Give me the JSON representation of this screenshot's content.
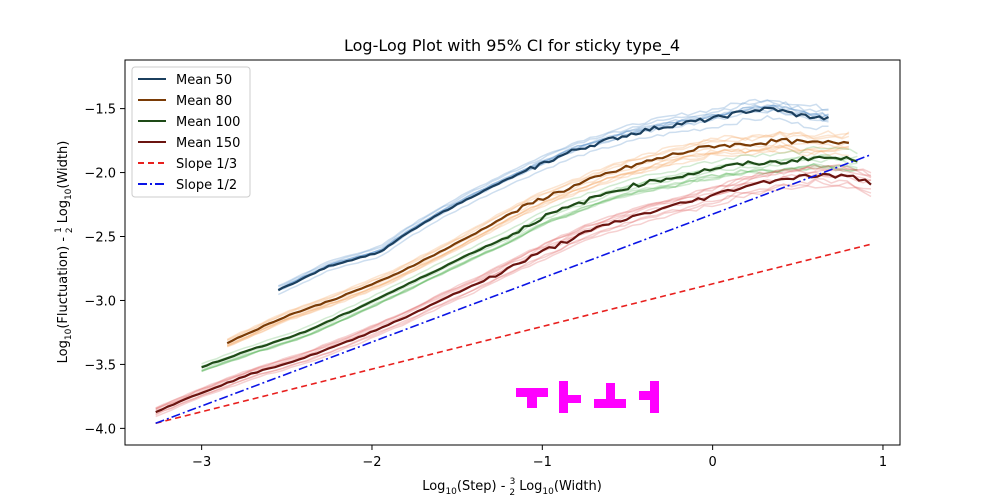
{
  "chart_data": {
    "type": "line",
    "title": "Log-Log Plot with 95% CI for sticky type_4",
    "xlabel": {
      "pre": "Log",
      "sub1": "10",
      "mid": "(Step) - ",
      "frac_num": "3",
      "frac_den": "2",
      "post": " Log",
      "sub2": "10",
      "end": "(Width)"
    },
    "ylabel": {
      "pre": "Log",
      "sub1": "10",
      "mid": "(Fluctuation) - ",
      "frac_num": "1",
      "frac_den": "2",
      "post": " Log",
      "sub2": "10",
      "end": "(Width)"
    },
    "xlim": [
      -3.45,
      1.1
    ],
    "ylim": [
      -4.13,
      -1.12
    ],
    "xticks": [
      -3,
      -2,
      -1,
      0,
      1
    ],
    "xtick_labels": [
      "−3",
      "−2",
      "−1",
      "0",
      "1"
    ],
    "yticks": [
      -4.0,
      -3.5,
      -3.0,
      -2.5,
      -2.0,
      -1.5
    ],
    "ytick_labels": [
      "−4.0",
      "−3.5",
      "−3.0",
      "−2.5",
      "−2.0",
      "−1.5"
    ],
    "grid": false,
    "legend_position": "top-left",
    "series": [
      {
        "name": "Mean 50",
        "color": "#1b3f5e",
        "band_color": "#4a8ac4",
        "x": [
          -2.55,
          -2.25,
          -1.95,
          -1.8,
          -1.6,
          -1.4,
          -1.2,
          -1.0,
          -0.8,
          -0.6,
          -0.4,
          -0.2,
          0.0,
          0.2,
          0.35,
          0.5,
          0.68
        ],
        "y": [
          -2.92,
          -2.73,
          -2.62,
          -2.48,
          -2.32,
          -2.18,
          -2.05,
          -1.93,
          -1.82,
          -1.74,
          -1.67,
          -1.62,
          -1.58,
          -1.52,
          -1.5,
          -1.55,
          -1.58
        ]
      },
      {
        "name": "Mean 80",
        "color": "#7a3b06",
        "band_color": "#f5a25b",
        "x": [
          -2.85,
          -2.5,
          -2.2,
          -1.9,
          -1.6,
          -1.4,
          -1.2,
          -1.0,
          -0.8,
          -0.6,
          -0.4,
          -0.2,
          0.0,
          0.2,
          0.4,
          0.6,
          0.8
        ],
        "y": [
          -3.33,
          -3.12,
          -2.98,
          -2.82,
          -2.62,
          -2.48,
          -2.33,
          -2.2,
          -2.1,
          -2.0,
          -1.92,
          -1.85,
          -1.79,
          -1.78,
          -1.75,
          -1.77,
          -1.76
        ]
      },
      {
        "name": "Mean 100",
        "color": "#1e4a17",
        "band_color": "#5cb85c",
        "x": [
          -3.0,
          -2.7,
          -2.4,
          -2.1,
          -1.8,
          -1.6,
          -1.4,
          -1.2,
          -1.0,
          -0.8,
          -0.6,
          -0.4,
          -0.2,
          0.0,
          0.2,
          0.4,
          0.6,
          0.85
        ],
        "y": [
          -3.52,
          -3.38,
          -3.25,
          -3.07,
          -2.88,
          -2.75,
          -2.62,
          -2.5,
          -2.35,
          -2.25,
          -2.15,
          -2.08,
          -2.03,
          -1.97,
          -1.93,
          -1.92,
          -1.88,
          -1.9
        ]
      },
      {
        "name": "Mean 150",
        "color": "#6b1410",
        "band_color": "#e05a5a",
        "x": [
          -3.27,
          -3.0,
          -2.7,
          -2.4,
          -2.1,
          -1.8,
          -1.6,
          -1.4,
          -1.2,
          -1.0,
          -0.8,
          -0.6,
          -0.4,
          -0.2,
          0.0,
          0.2,
          0.4,
          0.6,
          0.8,
          0.93
        ],
        "y": [
          -3.87,
          -3.72,
          -3.57,
          -3.45,
          -3.3,
          -3.13,
          -3.0,
          -2.88,
          -2.75,
          -2.62,
          -2.5,
          -2.4,
          -2.32,
          -2.25,
          -2.18,
          -2.1,
          -2.05,
          -2.02,
          -2.03,
          -2.08
        ]
      }
    ],
    "reference_lines": [
      {
        "name": "Slope 1/3",
        "color": "#e8201e",
        "dash": "6,4",
        "x": [
          -3.27,
          0.93
        ],
        "y": [
          -3.96,
          -2.56
        ]
      },
      {
        "name": "Slope 1/2",
        "color": "#0a14e6",
        "dash": "9,3,2,3",
        "x": [
          -3.27,
          0.93
        ],
        "y": [
          -3.96,
          -1.86
        ]
      }
    ],
    "watermark_color": "#ff00ff"
  }
}
